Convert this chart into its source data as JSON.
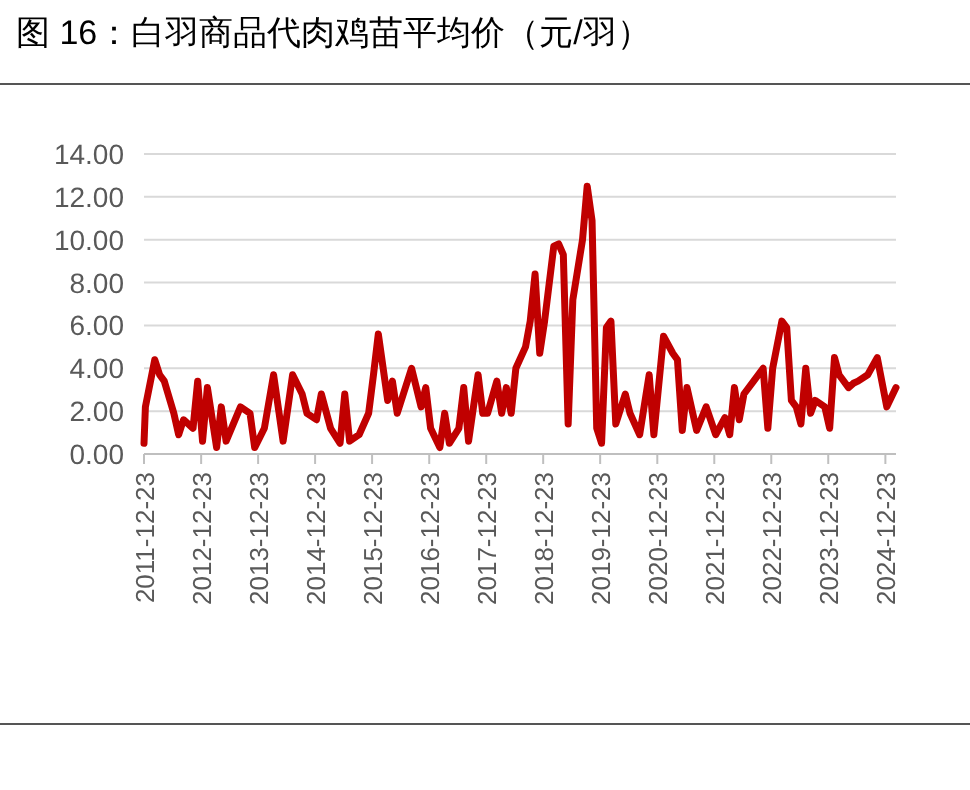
{
  "chart_data": {
    "type": "line",
    "title": "图 16：白羽商品代肉鸡苗平均价（元/羽）",
    "x": [
      "2011-12-23",
      "2012-01",
      "2012-03",
      "2012-04",
      "2012-05",
      "2012-07",
      "2012-08",
      "2012-09",
      "2012-11",
      "2012-12",
      "2013-01",
      "2013-02",
      "2013-04",
      "2013-05",
      "2013-06",
      "2013-09",
      "2013-11",
      "2013-12",
      "2014-02",
      "2014-04",
      "2014-06",
      "2014-08",
      "2014-10",
      "2014-11",
      "2015-01",
      "2015-02",
      "2015-04",
      "2015-06",
      "2015-07",
      "2015-08",
      "2015-10",
      "2015-12",
      "2016-01",
      "2016-02",
      "2016-04",
      "2016-05",
      "2016-06",
      "2016-09",
      "2016-11",
      "2016-12",
      "2017-01",
      "2017-03",
      "2017-04",
      "2017-05",
      "2017-07",
      "2017-08",
      "2017-09",
      "2017-11",
      "2017-12",
      "2018-01",
      "2018-03",
      "2018-04",
      "2018-05",
      "2018-06",
      "2018-07",
      "2018-09",
      "2018-10",
      "2018-11",
      "2018-12",
      "2019-01",
      "2019-03",
      "2019-04",
      "2019-05",
      "2019-06",
      "2019-07",
      "2019-09",
      "2019-10",
      "2019-11",
      "2019-12",
      "2020-01",
      "2020-02",
      "2020-03",
      "2020-04",
      "2020-06",
      "2020-07",
      "2020-09",
      "2020-11",
      "2020-12",
      "2021-02",
      "2021-04",
      "2021-05",
      "2021-06",
      "2021-07",
      "2021-09",
      "2021-11",
      "2022-01",
      "2022-03",
      "2022-04",
      "2022-05",
      "2022-06",
      "2022-07",
      "2022-09",
      "2022-11",
      "2022-12",
      "2023-01",
      "2023-03",
      "2023-04",
      "2023-05",
      "2023-06",
      "2023-07",
      "2023-08",
      "2023-09",
      "2023-10",
      "2023-12",
      "2024-01",
      "2024-02",
      "2024-03",
      "2024-05",
      "2024-06",
      "2024-07",
      "2024-09",
      "2024-11",
      "2025-01",
      "2025-03"
    ],
    "series": [
      {
        "color": "#c00000",
        "values": [
          0.5,
          2.2,
          4.4,
          3.7,
          3.4,
          1.9,
          0.9,
          1.6,
          1.2,
          3.4,
          0.6,
          3.1,
          0.3,
          2.2,
          0.6,
          2.2,
          1.9,
          0.3,
          1.2,
          3.7,
          0.6,
          3.7,
          2.8,
          1.9,
          1.6,
          2.8,
          1.2,
          0.5,
          2.8,
          0.6,
          0.9,
          1.9,
          3.7,
          5.6,
          2.5,
          3.4,
          1.9,
          4.0,
          2.2,
          3.1,
          1.2,
          0.3,
          1.9,
          0.5,
          1.2,
          3.1,
          0.6,
          3.7,
          1.9,
          1.9,
          3.4,
          1.9,
          3.1,
          1.9,
          4.0,
          5.0,
          6.2,
          8.4,
          4.7,
          6.2,
          9.7,
          9.8,
          9.3,
          1.4,
          7.2,
          10.0,
          12.5,
          10.9,
          1.2,
          0.5,
          5.9,
          6.2,
          1.4,
          2.8,
          1.9,
          0.9,
          3.7,
          0.9,
          5.5,
          4.7,
          4.4,
          1.1,
          3.1,
          1.1,
          2.2,
          0.9,
          1.7,
          0.9,
          3.1,
          1.6,
          2.8,
          3.4,
          4.0,
          1.2,
          4.0,
          6.2,
          5.9,
          2.5,
          2.2,
          1.4,
          4.0,
          1.9,
          2.5,
          2.2,
          1.2,
          4.5,
          3.7,
          3.1,
          3.3,
          3.4,
          3.7,
          4.5,
          2.2,
          3.1
        ]
      }
    ],
    "xlim": [
      "2011-12-23",
      "2025-03"
    ],
    "xticks": [
      {
        "value": "2011-12-23",
        "label": "2011-12-23"
      },
      {
        "value": "2012-12-23",
        "label": "2012-12-23"
      },
      {
        "value": "2013-12-23",
        "label": "2013-12-23"
      },
      {
        "value": "2014-12-23",
        "label": "2014-12-23"
      },
      {
        "value": "2015-12-23",
        "label": "2015-12-23"
      },
      {
        "value": "2016-12-23",
        "label": "2016-12-23"
      },
      {
        "value": "2017-12-23",
        "label": "2017-12-23"
      },
      {
        "value": "2018-12-23",
        "label": "2018-12-23"
      },
      {
        "value": "2019-12-23",
        "label": "2019-12-23"
      },
      {
        "value": "2020-12-23",
        "label": "2020-12-23"
      },
      {
        "value": "2021-12-23",
        "label": "2021-12-23"
      },
      {
        "value": "2022-12-23",
        "label": "2022-12-23"
      },
      {
        "value": "2023-12-23",
        "label": "2023-12-23"
      },
      {
        "value": "2024-12-23",
        "label": "2024-12-23"
      }
    ],
    "ylim": [
      0,
      14
    ],
    "yticks": [
      {
        "value": 0,
        "label": "0.00"
      },
      {
        "value": 2,
        "label": "2.00"
      },
      {
        "value": 4,
        "label": "4.00"
      },
      {
        "value": 6,
        "label": "6.00"
      },
      {
        "value": 8,
        "label": "8.00"
      },
      {
        "value": 10,
        "label": "10.00"
      },
      {
        "value": 12,
        "label": "12.00"
      },
      {
        "value": 14,
        "label": "14.00"
      }
    ],
    "grid": "y",
    "marker": "none",
    "line_style": "solid"
  }
}
